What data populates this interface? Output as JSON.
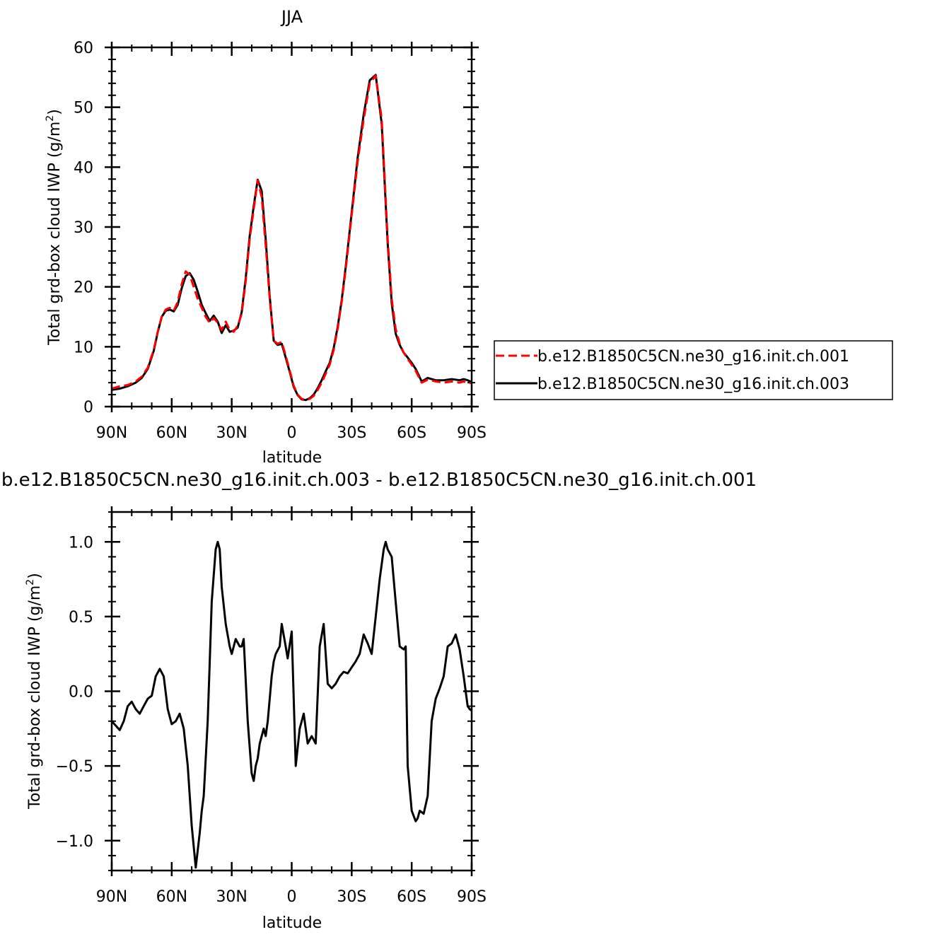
{
  "chart_data": [
    {
      "type": "line",
      "title": "JJA",
      "xlabel": "latitude",
      "ylabel_main": "Total grd-box cloud IWP (g/m",
      "ylabel_sup": "2",
      "ylabel_close": ")",
      "xlim": [
        90,
        -90
      ],
      "ylim": [
        0,
        60
      ],
      "xticks": [
        {
          "value": 90,
          "label": "90N"
        },
        {
          "value": 60,
          "label": "60N"
        },
        {
          "value": 30,
          "label": "30N"
        },
        {
          "value": 0,
          "label": "0"
        },
        {
          "value": -30,
          "label": "30S"
        },
        {
          "value": -60,
          "label": "60S"
        },
        {
          "value": -90,
          "label": "90S"
        }
      ],
      "yticks": [
        {
          "value": 0,
          "label": "0"
        },
        {
          "value": 10,
          "label": "10"
        },
        {
          "value": 20,
          "label": "20"
        },
        {
          "value": 30,
          "label": "30"
        },
        {
          "value": 40,
          "label": "40"
        },
        {
          "value": 50,
          "label": "50"
        },
        {
          "value": 60,
          "label": "60"
        }
      ],
      "legend_position": "right",
      "series": [
        {
          "name": "b.e12.B1850C5CN.ne30_g16.init.ch.001",
          "color": "#ff0000",
          "dash": true,
          "x": [
            90,
            86,
            82,
            78,
            75,
            72,
            69,
            67,
            65,
            63,
            61,
            59,
            57,
            55,
            53,
            51,
            49,
            47,
            45,
            43,
            41,
            39,
            37,
            35,
            33,
            31,
            29,
            27,
            25,
            23,
            21,
            19,
            17,
            15,
            13,
            11,
            9,
            7,
            5,
            3,
            1,
            -1,
            -3,
            -5,
            -7,
            -9,
            -11,
            -13,
            -15,
            -17,
            -19,
            -21,
            -23,
            -25,
            -27,
            -30,
            -33,
            -36,
            -39,
            -42,
            -45,
            -48,
            -50,
            -52,
            -54,
            -56,
            -58,
            -60,
            -62,
            -65,
            -68,
            -72,
            -76,
            -80,
            -84,
            -86,
            -88,
            -90
          ],
          "y": [
            3.0,
            3.4,
            3.6,
            4.2,
            5.0,
            6.5,
            9.5,
            12.5,
            15.0,
            16.2,
            16.5,
            16.0,
            17.5,
            20.5,
            22.6,
            22.0,
            20.0,
            18.0,
            16.5,
            15.0,
            14.0,
            14.8,
            14.0,
            12.8,
            14.2,
            12.8,
            12.5,
            13.5,
            15.5,
            21.0,
            28.0,
            33.0,
            37.8,
            35.0,
            27.0,
            18.0,
            11.0,
            10.5,
            10.8,
            8.5,
            6.0,
            3.5,
            2.0,
            1.3,
            1.1,
            1.3,
            1.8,
            2.8,
            4.0,
            5.5,
            7.0,
            9.5,
            13.0,
            17.5,
            23.0,
            32.0,
            41.0,
            48.0,
            54.0,
            55.3,
            48.0,
            28.0,
            18.0,
            13.0,
            10.5,
            9.0,
            8.0,
            7.0,
            6.0,
            4.0,
            4.5,
            4.2,
            4.0,
            4.2,
            4.0,
            4.2,
            4.0,
            3.9
          ]
        },
        {
          "name": "b.e12.B1850C5CN.ne30_g16.init.ch.003",
          "color": "#000000",
          "dash": false,
          "x": [
            90,
            86,
            82,
            78,
            75,
            72,
            69,
            67,
            65,
            63,
            61,
            59,
            57,
            55,
            53,
            51,
            49,
            47,
            45,
            43,
            41,
            39,
            37,
            35,
            33,
            31,
            29,
            27,
            25,
            23,
            21,
            19,
            17,
            15,
            13,
            11,
            9,
            7,
            5,
            3,
            1,
            -1,
            -3,
            -5,
            -7,
            -9,
            -11,
            -13,
            -15,
            -17,
            -19,
            -21,
            -23,
            -25,
            -27,
            -30,
            -33,
            -36,
            -39,
            -42,
            -45,
            -48,
            -50,
            -52,
            -54,
            -56,
            -58,
            -60,
            -62,
            -65,
            -68,
            -72,
            -76,
            -80,
            -84,
            -86,
            -88,
            -90
          ],
          "y": [
            2.8,
            3.0,
            3.4,
            4.0,
            4.8,
            6.3,
            9.3,
            12.4,
            15.0,
            16.0,
            16.2,
            15.9,
            17.0,
            19.8,
            21.8,
            22.3,
            21.2,
            19.2,
            17.0,
            15.6,
            14.3,
            15.2,
            14.2,
            12.3,
            13.6,
            12.5,
            12.7,
            13.2,
            15.8,
            21.5,
            28.5,
            33.5,
            37.9,
            36.0,
            28.0,
            18.4,
            11.0,
            10.3,
            10.5,
            8.2,
            5.8,
            3.3,
            1.9,
            1.2,
            1.1,
            1.4,
            2.0,
            3.1,
            4.4,
            5.9,
            7.3,
            9.8,
            13.3,
            17.8,
            23.4,
            32.4,
            41.6,
            48.8,
            54.5,
            55.4,
            47.2,
            27.3,
            17.3,
            12.2,
            10.3,
            9.0,
            8.2,
            7.3,
            6.3,
            4.2,
            4.8,
            4.4,
            4.4,
            4.6,
            4.4,
            4.6,
            4.4,
            4.1
          ]
        }
      ]
    },
    {
      "type": "line",
      "title": "b.e12.B1850C5CN.ne30_g16.init.ch.003  -  b.e12.B1850C5CN.ne30_g16.init.ch.001",
      "xlabel": "latitude",
      "ylabel_main": "Total grd-box cloud IWP (g/m",
      "ylabel_sup": "2",
      "ylabel_close": ")",
      "xlim": [
        90,
        -90
      ],
      "ylim": [
        -1.2,
        1.2
      ],
      "xticks": [
        {
          "value": 90,
          "label": "90N"
        },
        {
          "value": 60,
          "label": "60N"
        },
        {
          "value": 30,
          "label": "30N"
        },
        {
          "value": 0,
          "label": "0"
        },
        {
          "value": -30,
          "label": "30S"
        },
        {
          "value": -60,
          "label": "60S"
        },
        {
          "value": -90,
          "label": "90S"
        }
      ],
      "yticks": [
        {
          "value": -1.0,
          "label": "−1.0"
        },
        {
          "value": -0.5,
          "label": "−0.5"
        },
        {
          "value": 0.0,
          "label": "0.0"
        },
        {
          "value": 0.5,
          "label": "0.5"
        },
        {
          "value": 1.0,
          "label": "1.0"
        }
      ],
      "series": [
        {
          "color": "#000000",
          "dash": false,
          "x": [
            90,
            88,
            86,
            84,
            82,
            80,
            78,
            76,
            74,
            72,
            70,
            68,
            66,
            64,
            62,
            60,
            58,
            56,
            54,
            52,
            50,
            48,
            46,
            45,
            44,
            42,
            41,
            40,
            38,
            37,
            36,
            35,
            33,
            31,
            30,
            28,
            26,
            25,
            24,
            22,
            20,
            19,
            18,
            17,
            16,
            14,
            13,
            12,
            10,
            9,
            8,
            6,
            5,
            3,
            2,
            0,
            -2,
            -4,
            -6,
            -8,
            -10,
            -12,
            -14,
            -16,
            -18,
            -20,
            -22,
            -24,
            -26,
            -28,
            -30,
            -32,
            -34,
            -36,
            -38,
            -40,
            -42,
            -44,
            -46,
            -47,
            -48,
            -50,
            -52,
            -54,
            -56,
            -57,
            -58,
            -60,
            -62,
            -63,
            -64,
            -66,
            -68,
            -70,
            -72,
            -74,
            -76,
            -78,
            -80,
            -82,
            -84,
            -86,
            -88,
            -89,
            -90
          ],
          "y": [
            -0.2,
            -0.23,
            -0.26,
            -0.2,
            -0.1,
            -0.07,
            -0.12,
            -0.15,
            -0.1,
            -0.05,
            -0.03,
            0.1,
            0.15,
            0.1,
            -0.12,
            -0.22,
            -0.2,
            -0.15,
            -0.25,
            -0.5,
            -0.9,
            -1.18,
            -0.95,
            -0.8,
            -0.7,
            -0.2,
            0.2,
            0.6,
            0.95,
            1.0,
            0.95,
            0.7,
            0.45,
            0.3,
            0.25,
            0.35,
            0.3,
            0.3,
            0.35,
            -0.2,
            -0.55,
            -0.6,
            -0.5,
            -0.45,
            -0.35,
            -0.25,
            -0.3,
            -0.2,
            0.1,
            0.2,
            0.25,
            0.3,
            0.45,
            0.3,
            0.22,
            0.4,
            -0.5,
            -0.25,
            -0.15,
            -0.35,
            -0.3,
            -0.35,
            0.3,
            0.45,
            0.05,
            0.02,
            0.05,
            0.1,
            0.13,
            0.12,
            0.16,
            0.2,
            0.25,
            0.38,
            0.32,
            0.25,
            0.5,
            0.75,
            0.95,
            1.0,
            0.95,
            0.9,
            0.6,
            0.3,
            0.28,
            0.3,
            -0.5,
            -0.8,
            -0.87,
            -0.85,
            -0.8,
            -0.82,
            -0.7,
            -0.2,
            -0.05,
            0.02,
            0.1,
            0.3,
            0.32,
            0.38,
            0.28,
            0.1,
            -0.1,
            -0.12,
            -0.13
          ]
        }
      ]
    }
  ]
}
